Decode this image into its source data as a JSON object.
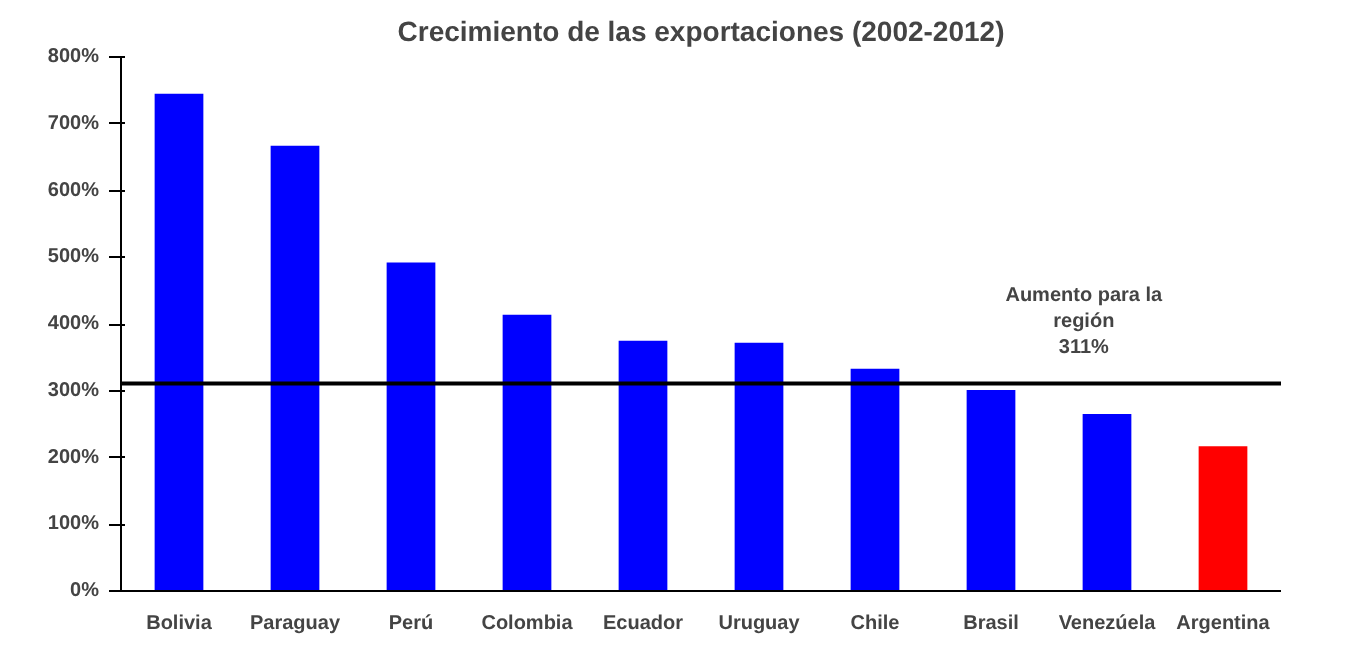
{
  "chart_data": {
    "type": "bar",
    "title": "Crecimiento de las exportaciones (2002-2012)",
    "categories": [
      "Bolivia",
      "Paraguay",
      "Perú",
      "Colombia",
      "Ecuador",
      "Uruguay",
      "Chile",
      "Brasil",
      "Venezúela",
      "Argentina"
    ],
    "values": [
      745,
      667,
      492,
      414,
      375,
      372,
      333,
      301,
      265,
      217
    ],
    "colors": [
      "#0000ff",
      "#0000ff",
      "#0000ff",
      "#0000ff",
      "#0000ff",
      "#0000ff",
      "#0000ff",
      "#0000ff",
      "#0000ff",
      "#ff0000"
    ],
    "ylim": [
      0,
      800
    ],
    "yticks": [
      {
        "value": 0,
        "label": "0%"
      },
      {
        "value": 100,
        "label": "100%"
      },
      {
        "value": 200,
        "label": "200%"
      },
      {
        "value": 300,
        "label": "300%"
      },
      {
        "value": 400,
        "label": "400%"
      },
      {
        "value": 500,
        "label": "500%"
      },
      {
        "value": 600,
        "label": "600%"
      },
      {
        "value": 700,
        "label": "700%"
      },
      {
        "value": 800,
        "label": "800%"
      }
    ],
    "ref_lines": [
      {
        "axis": "y",
        "value": 311,
        "label": "Aumento para la\nregión\n311%",
        "color": "#000000"
      }
    ],
    "grid": false
  }
}
